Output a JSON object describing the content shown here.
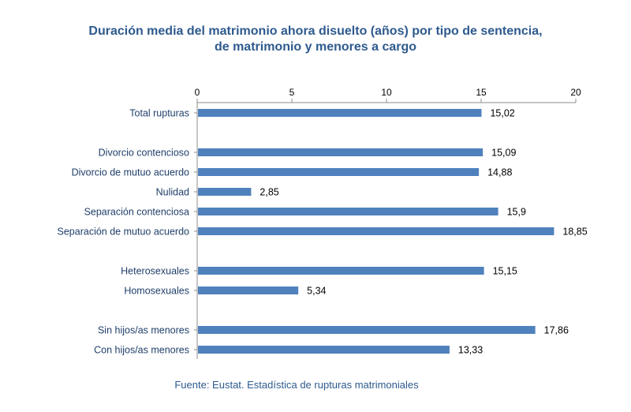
{
  "chart_data": {
    "type": "bar",
    "orientation": "horizontal",
    "title_line1": "Duración media del matrimonio ahora disuelto (años) por tipo de sentencia,",
    "title_line2": "de matrimonio y menores a cargo",
    "source": "Fuente: Eustat. Estadística de rupturas matrimoniales",
    "xlim": [
      0,
      20
    ],
    "x_ticks": [
      0,
      5,
      10,
      15,
      20
    ],
    "x_axis_position": "top",
    "grid": false,
    "bar_color": "#4f81bd",
    "title_color": "#2e5a8e",
    "categories": [
      "Total rupturas",
      "Divorcio contencioso",
      "Divorcio de mutuo acuerdo",
      "Nulidad",
      "Separación contenciosa",
      "Separación de mutuo acuerdo",
      "Heterosexuales",
      "Homosexuales",
      "Sin hijos/as menores",
      "Con hijos/as menores"
    ],
    "values": [
      15.02,
      15.09,
      14.88,
      2.85,
      15.9,
      18.85,
      15.15,
      5.34,
      17.86,
      13.33
    ],
    "value_labels": [
      "15,02",
      "15,09",
      "14,88",
      "2,85",
      "15,9",
      "18,85",
      "15,15",
      "5,34",
      "17,86",
      "13,33"
    ]
  }
}
